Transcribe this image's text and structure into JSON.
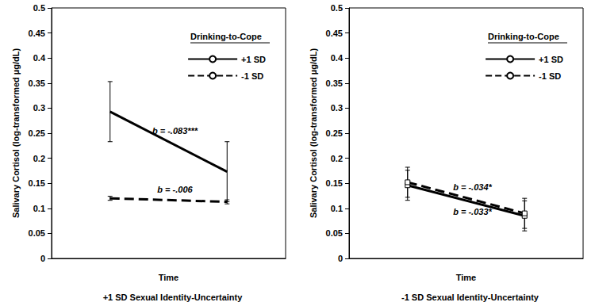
{
  "chart_data": [
    {
      "type": "line",
      "title": "+1 SD Sexual Identity-Uncertainty",
      "x_label": "Time",
      "y_label": "Salivary Cortisol (log-transformed µg/dL)",
      "categories": [
        null,
        null
      ],
      "ylim": [
        0,
        0.5
      ],
      "yticks": [
        0,
        0.05,
        0.1,
        0.15,
        0.2,
        0.25,
        0.3,
        0.35,
        0.4,
        0.45,
        0.5
      ],
      "tick_labels": "y",
      "legend": "upper right",
      "legend_title": "Drinking-to-Cope",
      "marker": "none",
      "series": [
        {
          "name": "+1 SD",
          "color": "#000000",
          "line_style": "solid",
          "values": [
            0.293,
            0.173
          ],
          "errors": [
            0.06,
            0.06
          ]
        },
        {
          "name": "-1 SD",
          "color": "#000000",
          "line_style": "dashed",
          "values": [
            0.12,
            0.113
          ],
          "errors": [
            0.004,
            0.004
          ]
        }
      ],
      "annotations": [
        {
          "text": "b = -.083***",
          "series": "+1 SD",
          "position": "above"
        },
        {
          "text": "b = -.006",
          "series": "-1 SD",
          "position": "above"
        }
      ]
    },
    {
      "type": "line",
      "title": "-1 SD Sexual Identity-Uncertainty",
      "x_label": "Time",
      "y_label": "Salivary Cortisol (log-transformed µg/dL)",
      "categories": [
        null,
        null
      ],
      "ylim": [
        0,
        0.5
      ],
      "yticks": [
        0,
        0.05,
        0.1,
        0.15,
        0.2,
        0.25,
        0.3,
        0.35,
        0.4,
        0.45,
        0.5
      ],
      "tick_labels": "y",
      "legend": "upper right",
      "legend_title": "Drinking-to-Cope",
      "marker": "square",
      "series": [
        {
          "name": "+1 SD",
          "color": "#000000",
          "line_style": "solid",
          "values": [
            0.146,
            0.085
          ],
          "errors": [
            0.03,
            0.03
          ]
        },
        {
          "name": "-1 SD",
          "color": "#000000",
          "line_style": "dashed",
          "values": [
            0.152,
            0.09
          ],
          "errors": [
            0.03,
            0.03
          ]
        }
      ],
      "annotations": [
        {
          "text": "b = -.034*",
          "series": "-1 SD",
          "position": "above"
        },
        {
          "text": "b = -.033*",
          "series": "+1 SD",
          "position": "below"
        }
      ]
    }
  ]
}
